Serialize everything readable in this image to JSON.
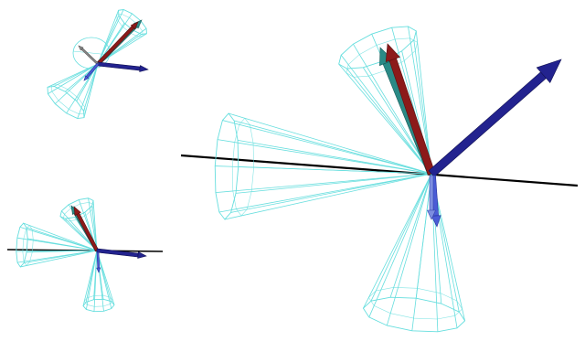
{
  "figure": {
    "panels": [
      {
        "id": "top-left",
        "has_axis_line": false,
        "cones": 2,
        "arrows": [
          "red",
          "teal",
          "blue"
        ]
      },
      {
        "id": "bottom-left",
        "has_axis_line": true,
        "cones": 3,
        "arrows": [
          "red",
          "teal",
          "blue",
          "blue-down"
        ]
      },
      {
        "id": "main-right",
        "has_axis_line": true,
        "cones": 3,
        "arrows": [
          "red",
          "teal",
          "blue",
          "blue-down"
        ]
      }
    ],
    "colors": {
      "background": "#ffffff",
      "wireframe": "#66dede",
      "axis_line": "#000000",
      "arrow_red": "#8c1a1a",
      "arrow_teal": "#2a8a86",
      "arrow_blue": "#23238f",
      "arrow_blue_small": "#4a5cd6",
      "arrow_grey": "#8a8a8a"
    }
  }
}
